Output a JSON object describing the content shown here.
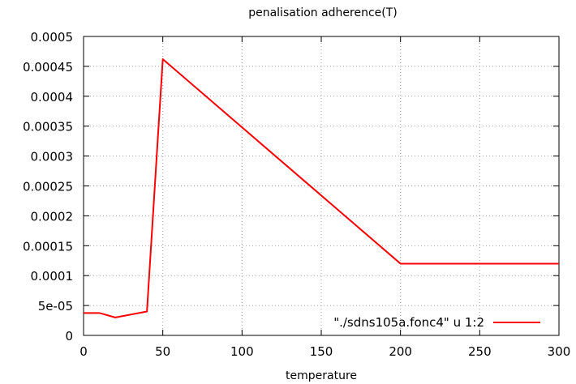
{
  "chart_data": {
    "type": "line",
    "title": "penalisation adherence(T)",
    "xlabel": "temperature",
    "ylabel": "",
    "xlim": [
      0,
      300
    ],
    "ylim": [
      0,
      0.0005
    ],
    "xticks": [
      "0",
      "50",
      "100",
      "150",
      "200",
      "250",
      "300"
    ],
    "yticks": [
      "0",
      "5e-05",
      "0.0001",
      "0.00015",
      "0.0002",
      "0.00025",
      "0.0003",
      "0.00035",
      "0.0004",
      "0.00045",
      "0.0005"
    ],
    "grid": true,
    "legend_position": "bottom-right",
    "series": [
      {
        "name": "\"./sdns105a.fonc4\" u 1:2",
        "color": "#ff0000",
        "x": [
          0,
          10,
          20,
          40,
          50,
          200,
          300
        ],
        "y": [
          3.75e-05,
          3.75e-05,
          3e-05,
          4e-05,
          0.000462,
          0.00012,
          0.00012
        ]
      }
    ]
  }
}
